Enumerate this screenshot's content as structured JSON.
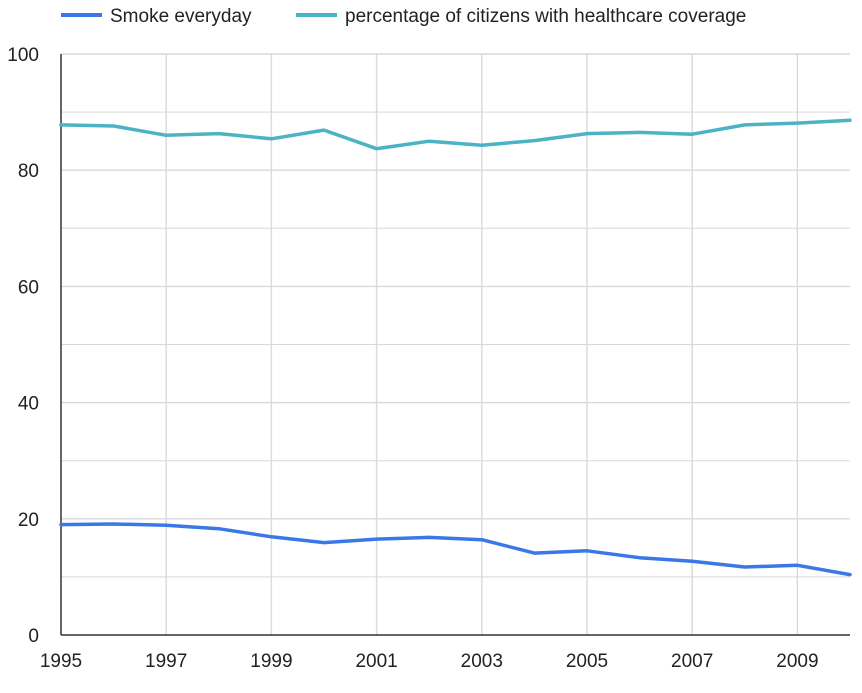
{
  "chart_data": {
    "type": "line",
    "title": "",
    "xlabel": "",
    "ylabel": "",
    "x": [
      1995,
      1996,
      1997,
      1998,
      1999,
      2000,
      2001,
      2002,
      2003,
      2004,
      2005,
      2006,
      2007,
      2008,
      2009,
      2010
    ],
    "xlim": [
      1995,
      2010
    ],
    "ylim": [
      0,
      100
    ],
    "x_ticks": [
      "1995",
      "1997",
      "1999",
      "2001",
      "2003",
      "2005",
      "2007",
      "2009"
    ],
    "y_ticks": [
      "0",
      "20",
      "40",
      "60",
      "80",
      "100"
    ],
    "grid": true,
    "legend_position": "top",
    "series": [
      {
        "name": "Smoke everyday",
        "color": "#3b78e7",
        "values": [
          19.0,
          19.1,
          18.9,
          18.3,
          16.9,
          15.9,
          16.5,
          16.8,
          16.4,
          14.1,
          14.5,
          13.3,
          12.7,
          11.7,
          12.0,
          10.4
        ]
      },
      {
        "name": "percentage of citizens with healthcare coverage",
        "color": "#4bb3c4",
        "values": [
          87.8,
          87.6,
          86.0,
          86.3,
          85.4,
          86.9,
          83.7,
          85.0,
          84.3,
          85.1,
          86.3,
          86.5,
          86.2,
          87.8,
          88.1,
          88.6
        ]
      }
    ]
  }
}
